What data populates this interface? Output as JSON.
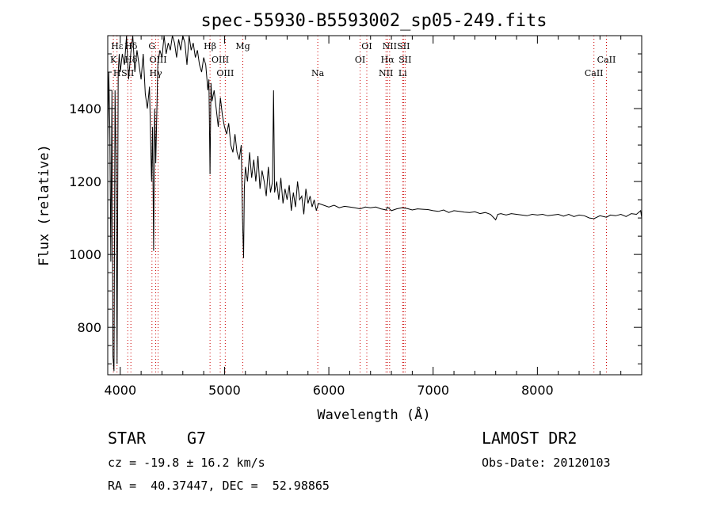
{
  "chart_data": {
    "type": "line",
    "title": "spec-55930-B5593002_sp05-249.fits",
    "xlabel": "Wavelength (Å)",
    "ylabel": "Flux (relative)",
    "xlim": [
      3880,
      9000
    ],
    "ylim": [
      670,
      1600
    ],
    "x_ticks": [
      4000,
      5000,
      6000,
      7000,
      8000
    ],
    "y_ticks": [
      800,
      1000,
      1200,
      1400
    ],
    "grid": false,
    "series": [
      {
        "x": [
          3880,
          3890,
          3900,
          3910,
          3920,
          3930,
          3940,
          3950,
          3960,
          3970,
          3980,
          3990,
          4000,
          4020,
          4040,
          4060,
          4080,
          4100,
          4120,
          4140,
          4160,
          4180,
          4200,
          4220,
          4240,
          4260,
          4280,
          4300,
          4310,
          4320,
          4330,
          4340,
          4360,
          4380,
          4400,
          4420,
          4440,
          4460,
          4480,
          4500,
          4520,
          4540,
          4560,
          4580,
          4600,
          4620,
          4640,
          4660,
          4680,
          4700,
          4720,
          4740,
          4760,
          4780,
          4800,
          4820,
          4840,
          4850,
          4861,
          4870,
          4880,
          4900,
          4920,
          4940,
          4960,
          4980,
          5000,
          5020,
          5040,
          5060,
          5080,
          5100,
          5120,
          5140,
          5160,
          5172,
          5183,
          5190,
          5200,
          5220,
          5240,
          5260,
          5280,
          5300,
          5320,
          5340,
          5360,
          5380,
          5400,
          5420,
          5440,
          5460,
          5470,
          5480,
          5500,
          5520,
          5540,
          5560,
          5580,
          5600,
          5620,
          5640,
          5660,
          5680,
          5700,
          5720,
          5740,
          5760,
          5780,
          5800,
          5820,
          5840,
          5860,
          5880,
          5900,
          5950,
          6000,
          6050,
          6100,
          6150,
          6200,
          6250,
          6300,
          6350,
          6400,
          6450,
          6500,
          6550,
          6563,
          6600,
          6650,
          6700,
          6750,
          6800,
          6850,
          6900,
          6950,
          7000,
          7050,
          7100,
          7150,
          7200,
          7250,
          7300,
          7350,
          7400,
          7450,
          7500,
          7550,
          7600,
          7620,
          7650,
          7700,
          7750,
          7800,
          7850,
          7900,
          7950,
          8000,
          8050,
          8100,
          8150,
          8200,
          8250,
          8300,
          8350,
          8400,
          8450,
          8498,
          8542,
          8600,
          8662,
          8700,
          8750,
          8800,
          8850,
          8900,
          8950,
          8990,
          9000
        ],
        "y": [
          1300,
          1500,
          1350,
          980,
          1450,
          720,
          680,
          1450,
          1250,
          700,
          1500,
          1550,
          1500,
          1550,
          1520,
          1600,
          1480,
          1550,
          1600,
          1500,
          1560,
          1520,
          1480,
          1550,
          1440,
          1400,
          1460,
          1200,
          1350,
          1010,
          1400,
          1250,
          1520,
          1560,
          1540,
          1600,
          1550,
          1580,
          1560,
          1600,
          1580,
          1540,
          1590,
          1560,
          1600,
          1580,
          1520,
          1600,
          1560,
          1580,
          1540,
          1560,
          1520,
          1500,
          1540,
          1520,
          1450,
          1480,
          1220,
          1470,
          1420,
          1450,
          1400,
          1350,
          1430,
          1380,
          1350,
          1330,
          1360,
          1300,
          1280,
          1330,
          1280,
          1260,
          1300,
          1100,
          990,
          1180,
          1240,
          1200,
          1280,
          1210,
          1260,
          1200,
          1270,
          1180,
          1230,
          1200,
          1160,
          1240,
          1170,
          1200,
          1450,
          1170,
          1200,
          1150,
          1210,
          1140,
          1180,
          1150,
          1190,
          1120,
          1170,
          1130,
          1200,
          1150,
          1160,
          1110,
          1180,
          1140,
          1160,
          1130,
          1150,
          1120,
          1140,
          1135,
          1130,
          1135,
          1128,
          1132,
          1130,
          1128,
          1125,
          1130,
          1128,
          1130,
          1125,
          1122,
          1130,
          1120,
          1125,
          1128,
          1126,
          1122,
          1125,
          1124,
          1123,
          1120,
          1118,
          1122,
          1115,
          1120,
          1118,
          1116,
          1115,
          1117,
          1112,
          1115,
          1110,
          1095,
          1110,
          1112,
          1108,
          1112,
          1110,
          1108,
          1106,
          1110,
          1108,
          1110,
          1106,
          1108,
          1110,
          1105,
          1110,
          1104,
          1108,
          1106,
          1100,
          1098,
          1106,
          1102,
          1108,
          1106,
          1110,
          1104,
          1112,
          1110,
          1120,
          1100
        ]
      }
    ],
    "annotations": [
      {
        "label": "Hε",
        "x": 3970,
        "row": 1
      },
      {
        "label": "K",
        "x": 3934,
        "row": 2
      },
      {
        "label": "H",
        "x": 3969,
        "row": 3
      },
      {
        "label": "Hδ",
        "x": 4102,
        "row": 1
      },
      {
        "label": "Hδ",
        "x": 4102,
        "row": 2
      },
      {
        "label": "SII",
        "x": 4072,
        "row": 3
      },
      {
        "label": "G",
        "x": 4304,
        "row": 1
      },
      {
        "label": "OIII",
        "x": 4363,
        "row": 2
      },
      {
        "label": "Hγ",
        "x": 4340,
        "row": 3
      },
      {
        "label": "Hβ",
        "x": 4861,
        "row": 1
      },
      {
        "label": "OIII",
        "x": 4959,
        "row": 2
      },
      {
        "label": "OIII",
        "x": 5007,
        "row": 3
      },
      {
        "label": "Mg",
        "x": 5175,
        "row": 1
      },
      {
        "label": "Na",
        "x": 5894,
        "row": 3
      },
      {
        "label": "OI",
        "x": 6364,
        "row": 1
      },
      {
        "label": "OI",
        "x": 6300,
        "row": 2
      },
      {
        "label": "NII",
        "x": 6583,
        "row": 1
      },
      {
        "label": "SII",
        "x": 6716,
        "row": 1
      },
      {
        "label": "Hα",
        "x": 6563,
        "row": 2
      },
      {
        "label": "SII",
        "x": 6731,
        "row": 2
      },
      {
        "label": "NII",
        "x": 6548,
        "row": 3
      },
      {
        "label": "Li",
        "x": 6708,
        "row": 3
      },
      {
        "label": "CaII",
        "x": 8662,
        "row": 2
      },
      {
        "label": "CaII",
        "x": 8542,
        "row": 3
      }
    ],
    "line_positions": [
      3934,
      3969,
      4072,
      4102,
      4304,
      4340,
      4363,
      4861,
      4959,
      5007,
      5175,
      5894,
      6300,
      6364,
      6548,
      6563,
      6583,
      6708,
      6716,
      6731,
      8542,
      8662
    ]
  },
  "info": {
    "object_type": "STAR",
    "subclass": "G7",
    "survey": "LAMOST DR2",
    "redshift": "cz = -19.8 ± 16.2 km/s",
    "obs_date": "Obs-Date: 20120103",
    "coords": "RA =  40.37447, DEC =  52.98865"
  },
  "colors": {
    "spectrum": "#000000",
    "line_markers": "#cc0000",
    "background": "#ffffff"
  }
}
